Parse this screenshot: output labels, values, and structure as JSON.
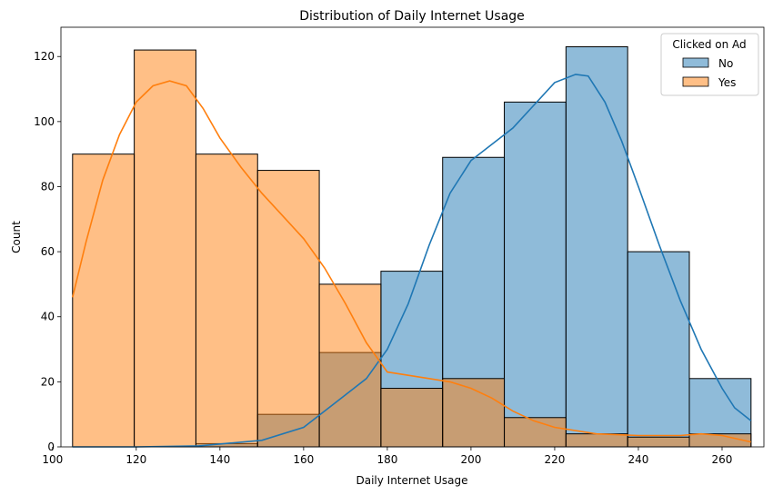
{
  "chart_data": {
    "type": "histogram",
    "title": "Distribution of Daily Internet Usage",
    "xlabel": "Daily Internet Usage",
    "ylabel": "Count",
    "xlim": [
      102.0,
      270.0
    ],
    "ylim": [
      0,
      129
    ],
    "xticks": [
      100,
      120,
      140,
      160,
      180,
      200,
      220,
      240,
      260
    ],
    "yticks": [
      0,
      20,
      40,
      60,
      80,
      100,
      120
    ],
    "bin_edges": [
      104.78,
      119.52,
      134.26,
      149.0,
      163.74,
      178.48,
      193.22,
      207.96,
      222.7,
      237.44,
      252.18,
      266.92
    ],
    "legend": {
      "title": "Clicked on Ad",
      "placement": "top-right"
    },
    "series": [
      {
        "name": "No",
        "color": "#1f77b4",
        "counts": [
          0,
          0,
          1,
          10,
          29,
          54,
          89,
          106,
          123,
          60,
          21
        ],
        "kde": [
          [
            104.78,
            0
          ],
          [
            120,
            0
          ],
          [
            135,
            0.3
          ],
          [
            150,
            2
          ],
          [
            160,
            6
          ],
          [
            165,
            11
          ],
          [
            170,
            16
          ],
          [
            175,
            21
          ],
          [
            180,
            30
          ],
          [
            185,
            44
          ],
          [
            190,
            62
          ],
          [
            195,
            78
          ],
          [
            200,
            88
          ],
          [
            205,
            93
          ],
          [
            210,
            98
          ],
          [
            215,
            105
          ],
          [
            220,
            112
          ],
          [
            225,
            114.5
          ],
          [
            228,
            114
          ],
          [
            232,
            106
          ],
          [
            236,
            94
          ],
          [
            240,
            80
          ],
          [
            245,
            62
          ],
          [
            250,
            45
          ],
          [
            255,
            30
          ],
          [
            260,
            18
          ],
          [
            263,
            12
          ],
          [
            266.92,
            8
          ]
        ]
      },
      {
        "name": "Yes",
        "color": "#ff7f0e",
        "counts": [
          90,
          122,
          90,
          85,
          50,
          18,
          21,
          9,
          4,
          3,
          4
        ],
        "kde": [
          [
            104.78,
            46
          ],
          [
            108,
            63
          ],
          [
            112,
            82
          ],
          [
            116,
            96
          ],
          [
            120,
            106
          ],
          [
            124,
            111
          ],
          [
            128,
            112.5
          ],
          [
            132,
            111
          ],
          [
            136,
            104
          ],
          [
            140,
            95
          ],
          [
            145,
            86
          ],
          [
            150,
            78
          ],
          [
            155,
            71
          ],
          [
            160,
            64
          ],
          [
            165,
            55
          ],
          [
            170,
            44
          ],
          [
            175,
            32
          ],
          [
            180,
            23
          ],
          [
            185,
            22
          ],
          [
            190,
            21
          ],
          [
            195,
            20
          ],
          [
            200,
            18
          ],
          [
            205,
            15
          ],
          [
            210,
            11
          ],
          [
            215,
            8
          ],
          [
            220,
            6
          ],
          [
            230,
            4
          ],
          [
            240,
            3.5
          ],
          [
            250,
            3.5
          ],
          [
            255,
            4
          ],
          [
            260,
            3.5
          ],
          [
            266.92,
            1.5
          ]
        ]
      }
    ]
  }
}
